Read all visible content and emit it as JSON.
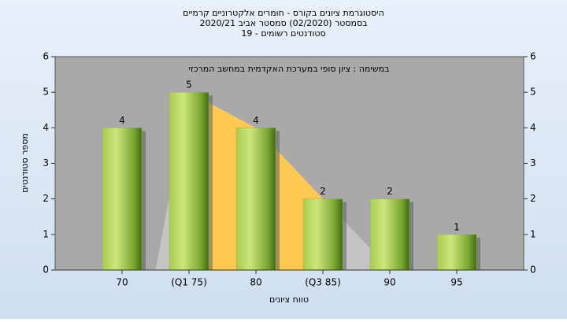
{
  "chart_data": {
    "type": "bar",
    "title": [
      "היסטוגרמת ציונים בקורס - חומרים אלקטרוניים קרמיים",
      "בסמסטר  (02/2020)  סמסטר אביב 2020/21",
      "סטודנטים רשומים - 19"
    ],
    "annotation": "במשימה : ציון סופי במערכת האקדמית במחשב המרכזי",
    "x_label": "טווח ציונים",
    "y_label": "מספר סטודנטים",
    "categories": [
      "70",
      "(Q1 75)",
      "80",
      "(Q3 85)",
      "90",
      "95"
    ],
    "values": [
      4,
      5,
      4,
      2,
      2,
      1
    ],
    "color": "#8db83a",
    "area_color": "#c4c4c4",
    "iqr_color": "#ffc850",
    "ylim": [
      0,
      6
    ],
    "yticks": [
      0,
      1,
      2,
      3,
      4,
      5,
      6
    ],
    "y2lim": [
      0,
      6
    ],
    "y2ticks": [
      0,
      1,
      2,
      3,
      4,
      5,
      6
    ]
  }
}
